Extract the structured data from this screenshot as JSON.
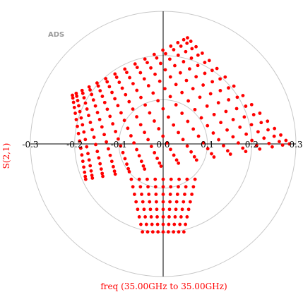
{
  "logo_text": "ADS",
  "chart_data": {
    "type": "scatter",
    "coordinate_system": "polar",
    "title": "",
    "ylabel": "S(2,1)",
    "xlabel": "freq (35.00GHz to 35.00GHz)",
    "radial_ticks": [
      0.1,
      0.2,
      0.3
    ],
    "tick_labels": [
      "-0.3",
      "-0.2",
      "-0.1",
      "0.0",
      "0.1",
      "0.2",
      "0.3"
    ],
    "rmax": 0.3,
    "grid": true,
    "marker_color": "#ff0000",
    "grid_color": "#c8c8c8",
    "axis_color": "#000000",
    "label_color": "#ff0000",
    "series": [
      {
        "grid_rows": 16,
        "grid_cols": 16,
        "x_range": [
          -0.205,
          0.285
        ],
        "y_range": [
          -0.245,
          0.24
        ],
        "mesh_corners": {
          "top_left": [
            -0.205,
            0.11
          ],
          "top_right": [
            0.055,
            0.24
          ],
          "bottom_left": [
            -0.175,
            -0.08
          ],
          "bottom_right": [
            0.285,
            0.0
          ],
          "center": [
            0.0,
            0.0
          ]
        },
        "bottom_lobe_center": [
          0.0,
          -0.205
        ]
      }
    ]
  }
}
